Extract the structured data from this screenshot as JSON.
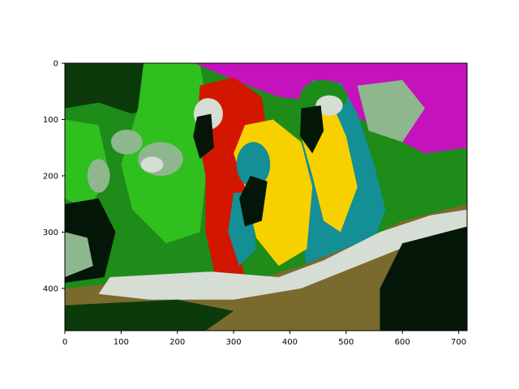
{
  "chart_data": {
    "type": "heatmap",
    "title": "",
    "xlabel": "",
    "ylabel": "",
    "image_width": 715,
    "image_height": 475,
    "xlim": [
      0,
      715
    ],
    "ylim": [
      475,
      0
    ],
    "x_ticks": [
      0,
      100,
      200,
      300,
      400,
      500,
      600,
      700
    ],
    "y_ticks": [
      0,
      100,
      200,
      300,
      400
    ],
    "grid": false,
    "palette": {
      "dark_green": "#0d3a0a",
      "green": "#2fbf1f",
      "mid_green": "#1d8c19",
      "sage": "#8fb78d",
      "pale_gray": "#d6ddd4",
      "red": "#d21600",
      "magenta": "#c412bd",
      "yellow": "#f7d000",
      "teal": "#138f95",
      "olive_brown": "#7a6a2e",
      "near_black": "#041608"
    },
    "content": "posterized quantized-color image of two macaws (one red, one blue-and-yellow) perched on a branch"
  }
}
